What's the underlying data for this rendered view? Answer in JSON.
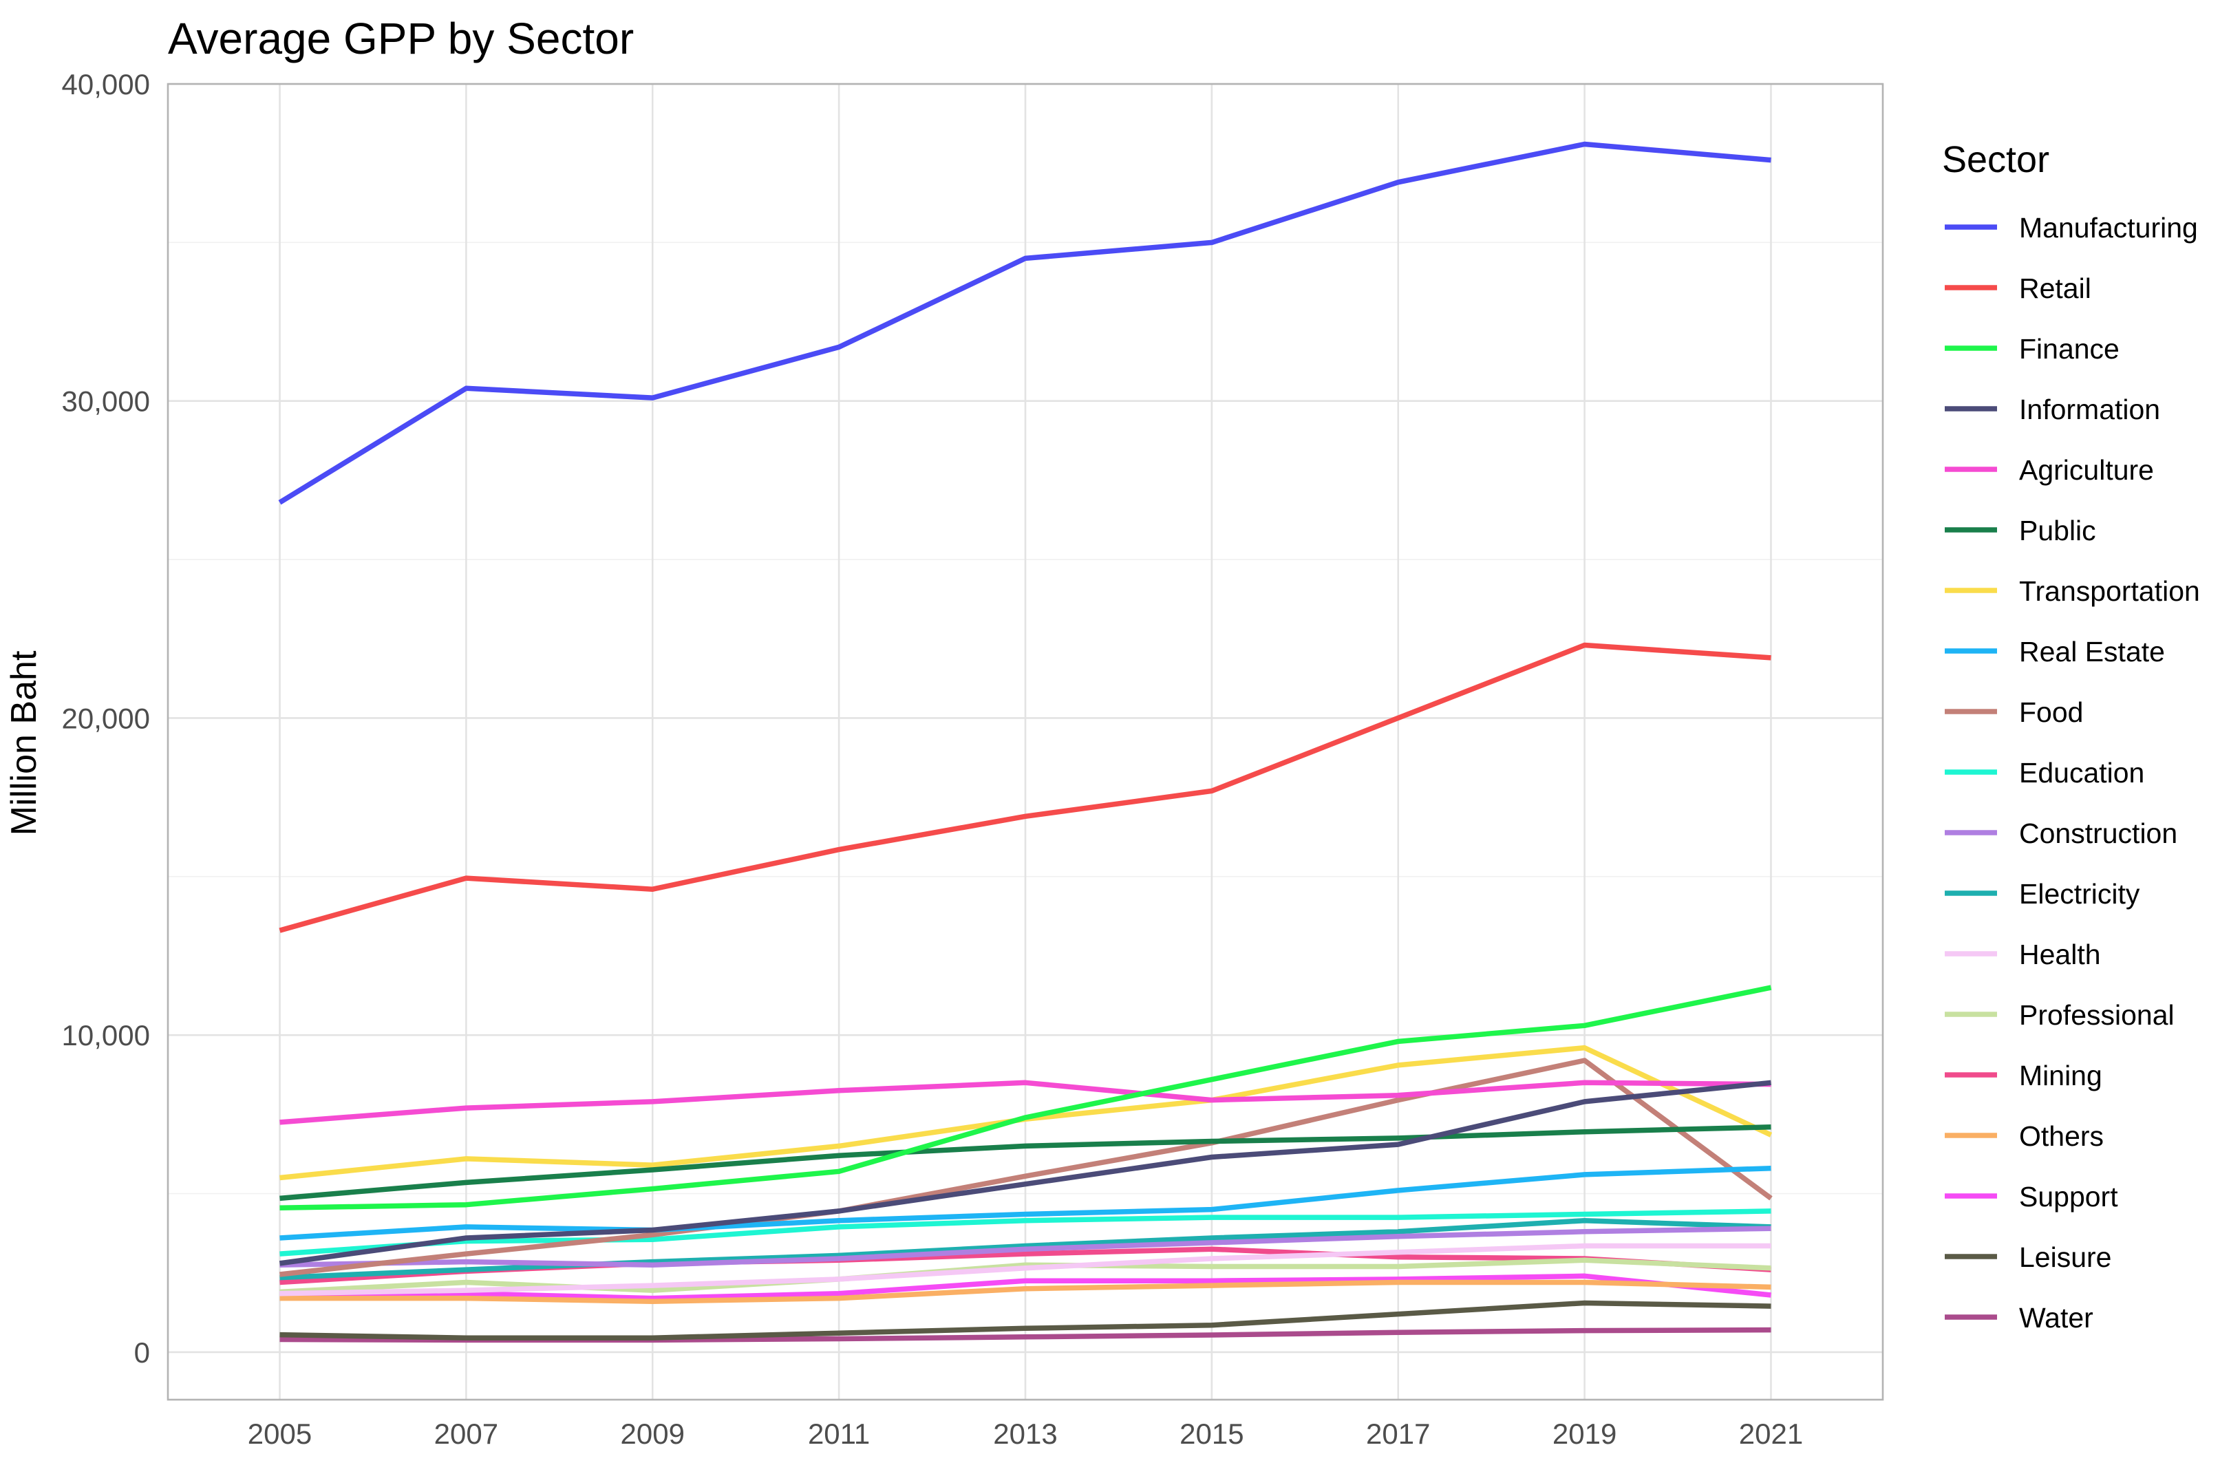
{
  "chart_data": {
    "type": "line",
    "title": "Average GPP by Sector",
    "xlabel": "",
    "ylabel": "Million Baht",
    "x": [
      2005,
      2007,
      2009,
      2011,
      2013,
      2015,
      2017,
      2019,
      2021
    ],
    "x_tick_labels": [
      "2005",
      "2007",
      "2009",
      "2011",
      "2013",
      "2015",
      "2017",
      "2019",
      "2021"
    ],
    "xlim": [
      2003.8,
      2022.2
    ],
    "ylim": [
      -1500,
      40000
    ],
    "y_ticks": [
      0,
      10000,
      20000,
      30000,
      40000
    ],
    "y_tick_labels": [
      "0",
      "10,000",
      "20,000",
      "30,000",
      "40,000"
    ],
    "grid": true,
    "legend": {
      "title": "Sector",
      "position": "right"
    },
    "series": [
      {
        "name": "Manufacturing",
        "color": "#4B4BF5",
        "values": [
          26800,
          30400,
          30100,
          31700,
          34500,
          35000,
          36900,
          38100,
          37600
        ]
      },
      {
        "name": "Retail",
        "color": "#F54B4B",
        "values": [
          13300,
          14950,
          14600,
          15850,
          16900,
          17700,
          20000,
          22300,
          21900
        ]
      },
      {
        "name": "Finance",
        "color": "#1EF54B",
        "values": [
          4550,
          4650,
          5150,
          5700,
          7400,
          8600,
          9800,
          10300,
          11500
        ]
      },
      {
        "name": "Information",
        "color": "#4B4B78",
        "values": [
          2800,
          3600,
          3850,
          4450,
          5300,
          6150,
          6550,
          7900,
          8500
        ]
      },
      {
        "name": "Agriculture",
        "color": "#F54BD2",
        "values": [
          7250,
          7700,
          7900,
          8250,
          8500,
          7950,
          8100,
          8500,
          8450
        ]
      },
      {
        "name": "Public",
        "color": "#197F4B",
        "values": [
          4850,
          5350,
          5750,
          6200,
          6500,
          6650,
          6750,
          6950,
          7100
        ]
      },
      {
        "name": "Transportation",
        "color": "#FADC4B",
        "values": [
          5500,
          6100,
          5900,
          6500,
          7350,
          7950,
          9050,
          9600,
          6850
        ]
      },
      {
        "name": "Real Estate",
        "color": "#1EB4F5",
        "values": [
          3600,
          3950,
          3850,
          4150,
          4350,
          4500,
          5100,
          5600,
          5800
        ]
      },
      {
        "name": "Food",
        "color": "#C38078",
        "values": [
          2450,
          3100,
          3700,
          4450,
          5550,
          6600,
          7950,
          9200,
          4850
        ]
      },
      {
        "name": "Education",
        "color": "#1EF5D2",
        "values": [
          3100,
          3500,
          3550,
          3950,
          4150,
          4250,
          4250,
          4350,
          4450
        ]
      },
      {
        "name": "Construction",
        "color": "#AF7FE1",
        "values": [
          2750,
          2850,
          2750,
          2950,
          3250,
          3450,
          3650,
          3800,
          3900
        ]
      },
      {
        "name": "Electricity",
        "color": "#1EAFAF",
        "values": [
          2350,
          2600,
          2850,
          3050,
          3350,
          3600,
          3800,
          4150,
          3950
        ]
      },
      {
        "name": "Health",
        "color": "#F5C8F5",
        "values": [
          1850,
          1950,
          2100,
          2300,
          2650,
          2950,
          3150,
          3350,
          3350
        ]
      },
      {
        "name": "Professional",
        "color": "#C8E1A0",
        "values": [
          1900,
          2200,
          1950,
          2300,
          2750,
          2700,
          2700,
          2900,
          2650
        ]
      },
      {
        "name": "Mining",
        "color": "#F04B8C",
        "values": [
          2200,
          2550,
          2800,
          2900,
          3100,
          3250,
          3000,
          2950,
          2600
        ]
      },
      {
        "name": "Others",
        "color": "#FAAF64",
        "values": [
          1700,
          1700,
          1600,
          1700,
          2000,
          2100,
          2200,
          2200,
          2050
        ]
      },
      {
        "name": "Support",
        "color": "#F54BF5",
        "values": [
          1800,
          1850,
          1700,
          1850,
          2250,
          2250,
          2300,
          2400,
          1800
        ]
      },
      {
        "name": "Leisure",
        "color": "#5A5A46",
        "values": [
          550,
          450,
          450,
          600,
          750,
          850,
          1200,
          1550,
          1450
        ]
      },
      {
        "name": "Water",
        "color": "#AA4B8C",
        "values": [
          400,
          380,
          380,
          420,
          480,
          540,
          620,
          680,
          700
        ]
      }
    ]
  }
}
